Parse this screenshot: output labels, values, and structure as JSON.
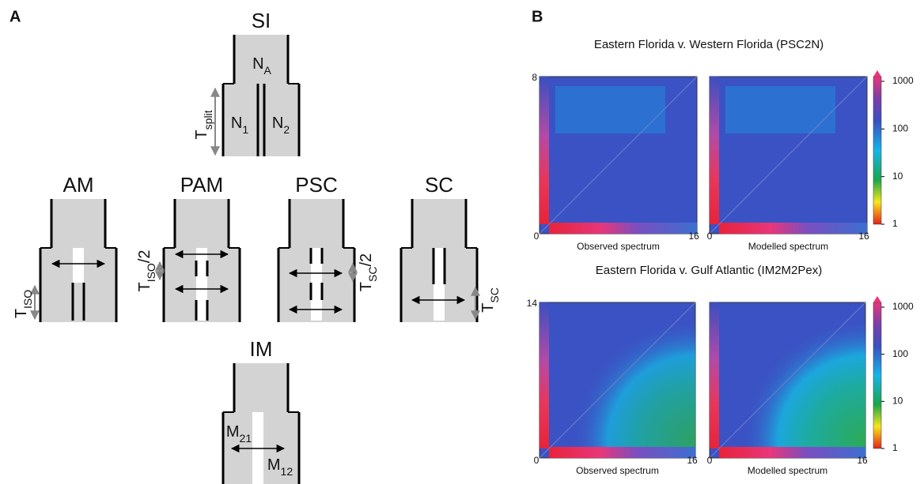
{
  "panel_a": {
    "label": "A",
    "models": {
      "si": "SI",
      "am": "AM",
      "pam": "PAM",
      "psc": "PSC",
      "sc": "SC",
      "im": "IM"
    },
    "params": {
      "n_a": {
        "base": "N",
        "sub": "A"
      },
      "n_1": {
        "base": "N",
        "sub": "1"
      },
      "n_2": {
        "base": "N",
        "sub": "2"
      },
      "t_split": {
        "base": "T",
        "sub": "split"
      },
      "t_iso": {
        "base": "T",
        "sub": "ISO"
      },
      "t_iso_half": {
        "base": "T",
        "sub": "ISO",
        "tail": "/2"
      },
      "t_sc_half": {
        "base": "T",
        "sub": "SC",
        "tail": "/2"
      },
      "t_sc": {
        "base": "T",
        "sub": "SC"
      },
      "m_21": {
        "base": "M",
        "sub": "21"
      },
      "m_12": {
        "base": "M",
        "sub": "12"
      }
    }
  },
  "panel_b": {
    "label": "B",
    "plots": [
      {
        "title": "Eastern Florida v. Western Florida (PSC2N)",
        "y_max": "8",
        "y_min": "0",
        "x_max": "16",
        "x_min": "0",
        "observed": "Observed spectrum",
        "modelled": "Modelled spectrum",
        "colorbar": [
          "1000",
          "100",
          "10",
          "1"
        ]
      },
      {
        "title": "Eastern Florida v. Gulf Atlantic (IM2M2Pex)",
        "y_max": "14",
        "y_min": "0",
        "x_max": "16",
        "x_min": "0",
        "observed": "Observed spectrum",
        "modelled": "Modelled spectrum",
        "colorbar": [
          "1000",
          "100",
          "10",
          "1"
        ]
      }
    ]
  }
}
